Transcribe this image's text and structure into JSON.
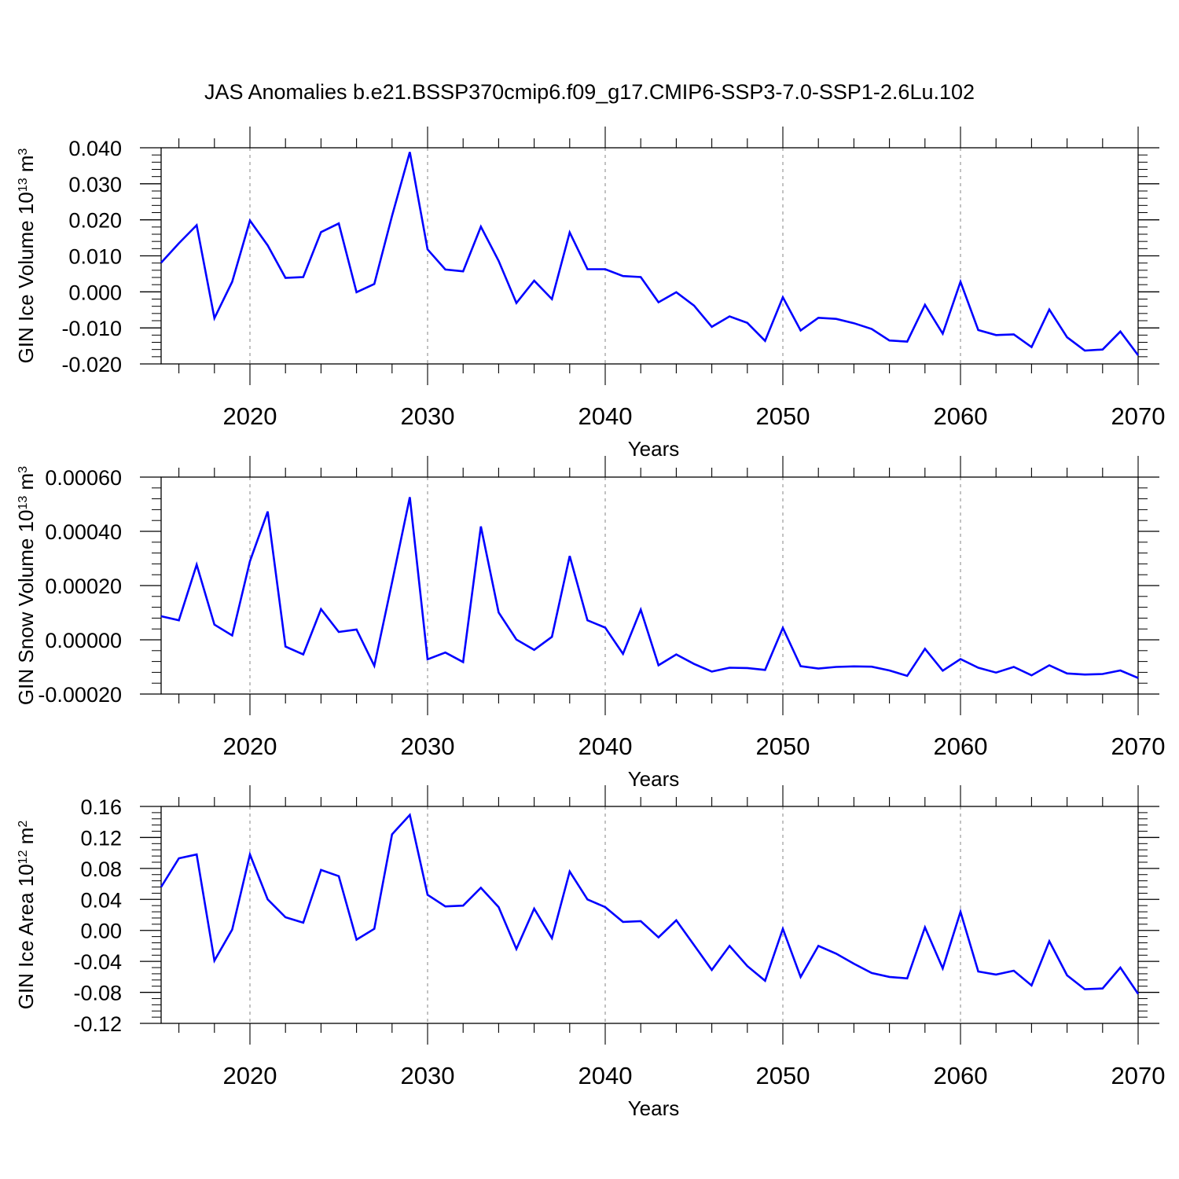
{
  "figure_title": "JAS Anomalies b.e21.BSSP370cmip6.f09_g17.CMIP6-SSP3-7.0-SSP1-2.6Lu.102",
  "chart_data": [
    {
      "type": "line",
      "ylabel_main": "GIN Ice Volume 10",
      "ylabel_exp": "13",
      "ylabel_unit": " m",
      "ylabel_unit_exp": "3",
      "xlabel": "Years",
      "xlim": [
        2015,
        2070
      ],
      "ylim": [
        -0.02,
        0.04
      ],
      "yticks": [
        -0.02,
        -0.01,
        0.0,
        0.01,
        0.02,
        0.03,
        0.04
      ],
      "ytick_labels": [
        "-0.020",
        "-0.010",
        "0.000",
        "0.010",
        "0.020",
        "0.030",
        "0.040"
      ],
      "xticks": [
        2020,
        2030,
        2040,
        2050,
        2060,
        2070
      ],
      "xtick_labels": [
        "2020",
        "2030",
        "2040",
        "2050",
        "2060",
        "2070"
      ],
      "series": [
        {
          "color": "#0000ff",
          "x": [
            2015,
            2016,
            2017,
            2018,
            2019,
            2020,
            2021,
            2022,
            2023,
            2024,
            2025,
            2026,
            2027,
            2028,
            2029,
            2030,
            2031,
            2032,
            2033,
            2034,
            2035,
            2036,
            2037,
            2038,
            2039,
            2040,
            2041,
            2042,
            2043,
            2044,
            2045,
            2046,
            2047,
            2048,
            2049,
            2050,
            2051,
            2052,
            2053,
            2054,
            2055,
            2056,
            2057,
            2058,
            2059,
            2060,
            2061,
            2062,
            2063,
            2064,
            2065,
            2066,
            2067,
            2068,
            2069,
            2070
          ],
          "values": [
            0.0081,
            0.0135,
            0.0185,
            -0.0073,
            0.0028,
            0.0198,
            0.0129,
            0.0039,
            0.0041,
            0.0166,
            0.019,
            -0.0001,
            0.0022,
            0.0211,
            0.0388,
            0.0118,
            0.0062,
            0.0057,
            0.0181,
            0.0086,
            -0.0031,
            0.0031,
            -0.002,
            0.0165,
            0.0063,
            0.0063,
            0.0044,
            0.0041,
            -0.0029,
            -0.0001,
            -0.0038,
            -0.0097,
            -0.0068,
            -0.0086,
            -0.0136,
            -0.0015,
            -0.0107,
            -0.0072,
            -0.0075,
            -0.0087,
            -0.0103,
            -0.0135,
            -0.0138,
            -0.0036,
            -0.0116,
            0.0028,
            -0.0106,
            -0.012,
            -0.0118,
            -0.0153,
            -0.0049,
            -0.0126,
            -0.0163,
            -0.016,
            -0.011,
            -0.0176
          ]
        }
      ]
    },
    {
      "type": "line",
      "ylabel_main": "GIN Snow Volume 10",
      "ylabel_exp": "13",
      "ylabel_unit": " m",
      "ylabel_unit_exp": "3",
      "xlabel": "Years",
      "xlim": [
        2015,
        2070
      ],
      "ylim": [
        -0.0002,
        0.0006
      ],
      "yticks": [
        -0.0002,
        0.0,
        0.0002,
        0.0004,
        0.0006
      ],
      "ytick_labels": [
        "-0.00020",
        "0.00000",
        "0.00020",
        "0.00040",
        "0.00060"
      ],
      "xticks": [
        2020,
        2030,
        2040,
        2050,
        2060,
        2070
      ],
      "xtick_labels": [
        "2020",
        "2030",
        "2040",
        "2050",
        "2060",
        "2070"
      ],
      "series": [
        {
          "color": "#0000ff",
          "x": [
            2015,
            2016,
            2017,
            2018,
            2019,
            2020,
            2021,
            2022,
            2023,
            2024,
            2025,
            2026,
            2027,
            2028,
            2029,
            2030,
            2031,
            2032,
            2033,
            2034,
            2035,
            2036,
            2037,
            2038,
            2039,
            2040,
            2041,
            2042,
            2043,
            2044,
            2045,
            2046,
            2047,
            2048,
            2049,
            2050,
            2051,
            2052,
            2053,
            2054,
            2055,
            2056,
            2057,
            2058,
            2059,
            2060,
            2061,
            2062,
            2063,
            2064,
            2065,
            2066,
            2067,
            2068,
            2069,
            2070
          ],
          "values": [
            8.7e-05,
            7.2e-05,
            0.000277,
            5.6e-05,
            1.6e-05,
            0.00029,
            0.000473,
            -2.5e-05,
            -5.4e-05,
            0.000113,
            2.9e-05,
            3.8e-05,
            -9.6e-05,
            0.000212,
            0.000526,
            -7.2e-05,
            -4.7e-05,
            -8.2e-05,
            0.000418,
            0.000101,
            1e-06,
            -3.7e-05,
            1.1e-05,
            0.000309,
            7.2e-05,
            4.5e-05,
            -5.2e-05,
            0.000111,
            -9.4e-05,
            -5.4e-05,
            -8.9e-05,
            -0.000117,
            -0.000103,
            -0.000104,
            -0.000111,
            4.4e-05,
            -9.7e-05,
            -0.000106,
            -0.0001,
            -9.8e-05,
            -9.9e-05,
            -0.000113,
            -0.000133,
            -3.3e-05,
            -0.000114,
            -7.1e-05,
            -0.000103,
            -0.000121,
            -0.0001,
            -0.000131,
            -9.4e-05,
            -0.000124,
            -0.000128,
            -0.000126,
            -0.000113,
            -0.000141
          ]
        }
      ]
    },
    {
      "type": "line",
      "ylabel_main": "GIN Ice Area 10",
      "ylabel_exp": "12",
      "ylabel_unit": " m",
      "ylabel_unit_exp": "2",
      "xlabel": "Years",
      "xlim": [
        2015,
        2070
      ],
      "ylim": [
        -0.12,
        0.16
      ],
      "yticks": [
        -0.12,
        -0.08,
        -0.04,
        0.0,
        0.04,
        0.08,
        0.12,
        0.16
      ],
      "ytick_labels": [
        "-0.12",
        "-0.08",
        "-0.04",
        "0.00",
        "0.04",
        "0.08",
        "0.12",
        "0.16"
      ],
      "xticks": [
        2020,
        2030,
        2040,
        2050,
        2060,
        2070
      ],
      "xtick_labels": [
        "2020",
        "2030",
        "2040",
        "2050",
        "2060",
        "2070"
      ],
      "series": [
        {
          "color": "#0000ff",
          "x": [
            2015,
            2016,
            2017,
            2018,
            2019,
            2020,
            2021,
            2022,
            2023,
            2024,
            2025,
            2026,
            2027,
            2028,
            2029,
            2030,
            2031,
            2032,
            2033,
            2034,
            2035,
            2036,
            2037,
            2038,
            2039,
            2040,
            2041,
            2042,
            2043,
            2044,
            2045,
            2046,
            2047,
            2048,
            2049,
            2050,
            2051,
            2052,
            2053,
            2054,
            2055,
            2056,
            2057,
            2058,
            2059,
            2060,
            2061,
            2062,
            2063,
            2064,
            2065,
            2066,
            2067,
            2068,
            2069,
            2070
          ],
          "values": [
            0.056,
            0.093,
            0.098,
            -0.039,
            0.001,
            0.098,
            0.04,
            0.017,
            0.01,
            0.078,
            0.07,
            -0.012,
            0.002,
            0.124,
            0.149,
            0.046,
            0.031,
            0.032,
            0.055,
            0.03,
            -0.024,
            0.028,
            -0.01,
            0.076,
            0.04,
            0.03,
            0.011,
            0.012,
            -0.009,
            0.013,
            -0.019,
            -0.051,
            -0.02,
            -0.046,
            -0.065,
            0.002,
            -0.06,
            -0.02,
            -0.03,
            -0.043,
            -0.055,
            -0.06,
            -0.062,
            0.004,
            -0.049,
            0.024,
            -0.053,
            -0.057,
            -0.052,
            -0.071,
            -0.014,
            -0.058,
            -0.076,
            -0.075,
            -0.048,
            -0.082
          ]
        }
      ]
    }
  ]
}
